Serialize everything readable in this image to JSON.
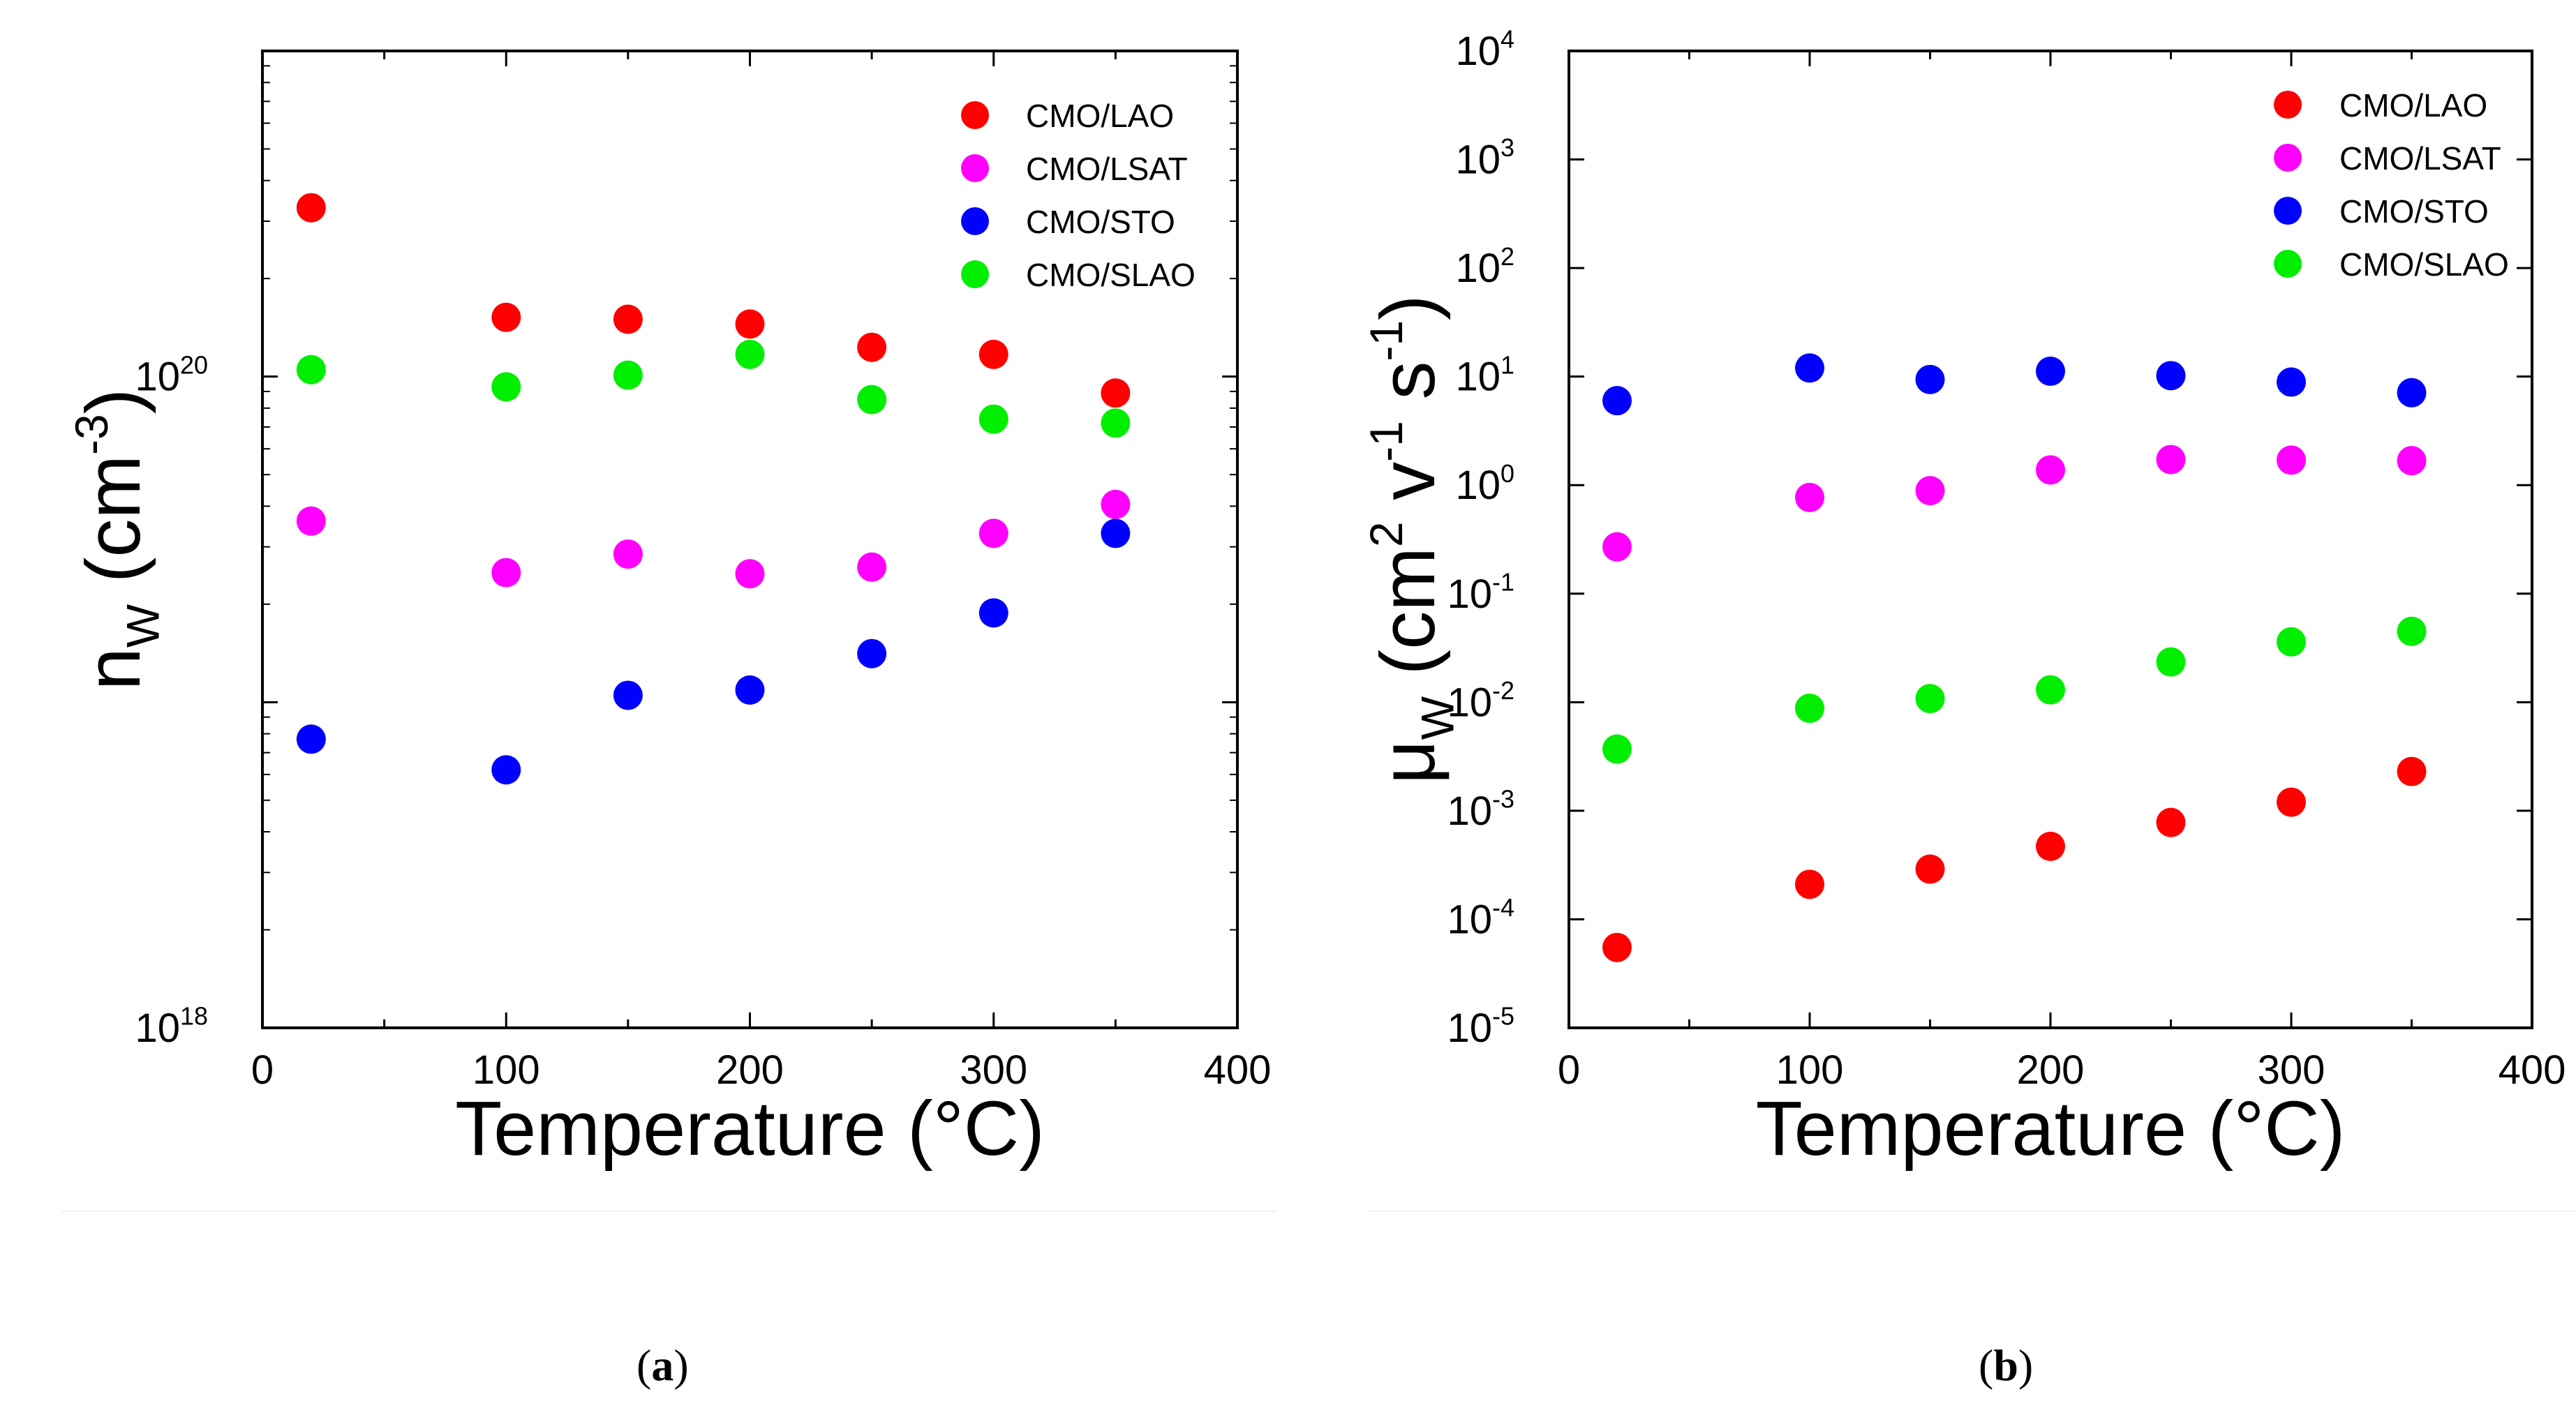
{
  "chart_data": [
    {
      "type": "scatter",
      "panel_label": "a",
      "xlabel": "Temperature (°C)",
      "ylabel_base": "n",
      "ylabel_sub": "W",
      "ylabel_unit": "(cm",
      "ylabel_unit_sup": "-3",
      "ylabel_close": ")",
      "xlim": [
        0,
        400
      ],
      "ylim_log10": [
        18,
        21
      ],
      "xticks": [
        "0",
        "100",
        "200",
        "300",
        "400"
      ],
      "ytick_labels": [
        {
          "exp": 18,
          "base": "10",
          "sup": "18"
        },
        {
          "exp": 20,
          "base": "10",
          "sup": "20"
        }
      ],
      "legend_position": "top-right",
      "series": [
        {
          "name": "CMO/LAO",
          "color": "#ff0000",
          "x": [
            20,
            100,
            150,
            200,
            250,
            300,
            350
          ],
          "y": [
            3.3e+20,
            1.52e+20,
            1.5e+20,
            1.45e+20,
            1.23e+20,
            1.17e+20,
            8.9e+19
          ]
        },
        {
          "name": "CMO/LSAT",
          "color": "#ff00ff",
          "x": [
            20,
            100,
            150,
            200,
            250,
            300,
            350
          ],
          "y": [
            3.6e+19,
            2.5e+19,
            2.85e+19,
            2.48e+19,
            2.6e+19,
            3.3e+19,
            4.05e+19
          ]
        },
        {
          "name": "CMO/STO",
          "color": "#0000ff",
          "x": [
            20,
            100,
            150,
            200,
            250,
            300,
            350
          ],
          "y": [
            7.7e+18,
            6.2e+18,
            1.05e+19,
            1.09e+19,
            1.41e+19,
            1.88e+19,
            3.3e+19
          ]
        },
        {
          "name": "CMO/SLAO",
          "color": "#00ee00",
          "x": [
            20,
            100,
            150,
            200,
            250,
            300,
            350
          ],
          "y": [
            1.05e+20,
            9.3e+19,
            1.01e+20,
            1.17e+20,
            8.5e+19,
            7.4e+19,
            7.2e+19
          ]
        }
      ]
    },
    {
      "type": "scatter",
      "panel_label": "b",
      "xlabel": "Temperature (°C)",
      "ylabel_base": "μ",
      "ylabel_sub": "W",
      "ylabel_unit": "(cm",
      "ylabel_unit_sup": "2",
      "ylabel_v": " v",
      "ylabel_v_sup": "-1",
      "ylabel_s": " s",
      "ylabel_s_sup": "-1",
      "ylabel_close": ")",
      "xlim": [
        0,
        400
      ],
      "ylim_log10": [
        -5,
        4
      ],
      "xticks": [
        "0",
        "100",
        "200",
        "300",
        "400"
      ],
      "ytick_labels": [
        {
          "exp": -5,
          "base": "10",
          "sup": "-5"
        },
        {
          "exp": -4,
          "base": "10",
          "sup": "-4"
        },
        {
          "exp": -3,
          "base": "10",
          "sup": "-3"
        },
        {
          "exp": -2,
          "base": "10",
          "sup": "-2"
        },
        {
          "exp": -1,
          "base": "10",
          "sup": "-1"
        },
        {
          "exp": 0,
          "base": "10",
          "sup": "0"
        },
        {
          "exp": 1,
          "base": "10",
          "sup": "1"
        },
        {
          "exp": 2,
          "base": "10",
          "sup": "2"
        },
        {
          "exp": 3,
          "base": "10",
          "sup": "3"
        },
        {
          "exp": 4,
          "base": "10",
          "sup": "4"
        }
      ],
      "legend_position": "top-right",
      "series": [
        {
          "name": "CMO/LAO",
          "color": "#ff0000",
          "x": [
            20,
            100,
            150,
            200,
            250,
            300,
            350
          ],
          "y": [
            5.5e-05,
            0.00021,
            0.00029,
            0.00047,
            0.00078,
            0.0012,
            0.0023
          ]
        },
        {
          "name": "CMO/LSAT",
          "color": "#ff00ff",
          "x": [
            20,
            100,
            150,
            200,
            250,
            300,
            350
          ],
          "y": [
            0.27,
            0.77,
            0.89,
            1.38,
            1.72,
            1.7,
            1.68
          ]
        },
        {
          "name": "CMO/STO",
          "color": "#0000ff",
          "x": [
            20,
            100,
            150,
            200,
            250,
            300,
            350
          ],
          "y": [
            6.0,
            12.0,
            9.4,
            11.2,
            10.2,
            8.9,
            7.1
          ]
        },
        {
          "name": "CMO/SLAO",
          "color": "#00ee00",
          "x": [
            20,
            100,
            150,
            200,
            250,
            300,
            350
          ],
          "y": [
            0.0037,
            0.0088,
            0.0108,
            0.013,
            0.0235,
            0.036,
            0.045
          ]
        }
      ]
    }
  ]
}
